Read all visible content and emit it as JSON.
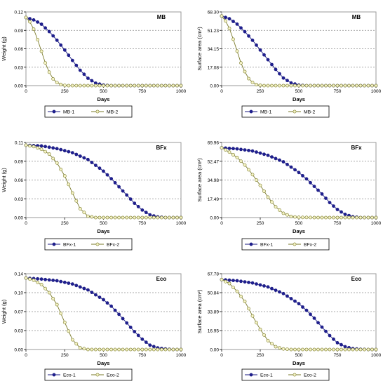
{
  "figure": {
    "colors": {
      "series1_fill": "#1f1f8f",
      "series1_line": "#1a1a80",
      "series2_fill": "#f5f3c6",
      "series2_line": "#7a7a2a",
      "grid": "#8c8c8c"
    }
  },
  "chart_data": [
    {
      "type": "line",
      "title": "MB",
      "xlabel": "Days",
      "ylabel": "Weight (g)",
      "xlim": [
        0,
        1000
      ],
      "ylim": [
        0,
        0.12
      ],
      "xticks": [
        "0",
        "250",
        "500",
        "750",
        "1000"
      ],
      "yticks": [
        "0.00",
        "0.03",
        "0.06",
        "0.09",
        "0.12"
      ],
      "legend_position": "bottom",
      "series": [
        {
          "name": "MB-1",
          "x": [
            0,
            50,
            100,
            150,
            200,
            250,
            300,
            350,
            400,
            450,
            500,
            550,
            600,
            700,
            800,
            900,
            1000
          ],
          "y": [
            0.111,
            0.107,
            0.1,
            0.088,
            0.074,
            0.058,
            0.041,
            0.025,
            0.012,
            0.004,
            0.001,
            0,
            0,
            0,
            0,
            0,
            0
          ]
        },
        {
          "name": "MB-2",
          "x": [
            0,
            25,
            50,
            75,
            100,
            125,
            150,
            175,
            200,
            225,
            250,
            275,
            300,
            350,
            400,
            500,
            1000
          ],
          "y": [
            0.111,
            0.104,
            0.092,
            0.075,
            0.056,
            0.037,
            0.022,
            0.011,
            0.005,
            0.002,
            0.0005,
            0,
            0,
            0,
            0,
            0,
            0
          ]
        }
      ]
    },
    {
      "type": "line",
      "title": "MB",
      "xlabel": "Days",
      "ylabel": "Surface area (cm²)",
      "xlim": [
        0,
        1000
      ],
      "ylim": [
        0,
        68.3
      ],
      "xticks": [
        "0",
        "250",
        "500",
        "750",
        "1000"
      ],
      "yticks": [
        "0.00",
        "17.08",
        "34.15",
        "51.23",
        "68.30"
      ],
      "legend_position": "bottom",
      "series": [
        {
          "name": "MB-1",
          "x": [
            0,
            50,
            100,
            150,
            200,
            250,
            300,
            350,
            400,
            450,
            500,
            550,
            600,
            700,
            800,
            900,
            1000
          ],
          "y": [
            64.5,
            62,
            57,
            50,
            42,
            33,
            24,
            15,
            7,
            2.5,
            0.5,
            0,
            0,
            0,
            0,
            0,
            0
          ]
        },
        {
          "name": "MB-2",
          "x": [
            0,
            25,
            50,
            75,
            100,
            125,
            150,
            175,
            200,
            225,
            250,
            275,
            300,
            350,
            400,
            500,
            1000
          ],
          "y": [
            64.5,
            60,
            53,
            43,
            32,
            21,
            13,
            6.5,
            3,
            1,
            0.3,
            0,
            0,
            0,
            0,
            0,
            0
          ]
        }
      ]
    },
    {
      "type": "line",
      "title": "BFx",
      "xlabel": "Days",
      "ylabel": "Weight (g)",
      "xlim": [
        0,
        1000
      ],
      "ylim": [
        0,
        0.11
      ],
      "xticks": [
        "0",
        "250",
        "500",
        "750",
        "1000"
      ],
      "yticks": [
        "0.00",
        "0.03",
        "0.06",
        "0.09",
        "0.11"
      ],
      "legend_position": "bottom",
      "series": [
        {
          "name": "BFx-1",
          "x": [
            0,
            100,
            200,
            300,
            400,
            500,
            550,
            600,
            650,
            700,
            750,
            800,
            850,
            900,
            950,
            1000
          ],
          "y": [
            0.106,
            0.105,
            0.101,
            0.095,
            0.085,
            0.068,
            0.057,
            0.045,
            0.033,
            0.021,
            0.011,
            0.004,
            0.001,
            0,
            0,
            0
          ]
        },
        {
          "name": "BFx-2",
          "x": [
            0,
            50,
            100,
            150,
            200,
            250,
            300,
            350,
            400,
            450,
            500,
            600,
            700,
            800,
            900,
            1000
          ],
          "y": [
            0.106,
            0.104,
            0.1,
            0.093,
            0.08,
            0.061,
            0.036,
            0.013,
            0.002,
            0,
            0,
            0,
            0,
            0,
            0,
            0
          ]
        }
      ]
    },
    {
      "type": "line",
      "title": "BFx",
      "xlabel": "Days",
      "ylabel": "Surface area (cm²)",
      "xlim": [
        0,
        1000
      ],
      "ylim": [
        0,
        69.96
      ],
      "xticks": [
        "0",
        "250",
        "500",
        "750",
        "1000"
      ],
      "yticks": [
        "0.00",
        "17.49",
        "34.98",
        "52.47",
        "69.96"
      ],
      "legend_position": "bottom",
      "series": [
        {
          "name": "BFx-1",
          "x": [
            0,
            100,
            200,
            300,
            400,
            500,
            550,
            600,
            650,
            700,
            750,
            800,
            850,
            900,
            950,
            1000
          ],
          "y": [
            65,
            64,
            62,
            58,
            52,
            42,
            36,
            29,
            22,
            14,
            7.5,
            3,
            0.8,
            0,
            0,
            0
          ]
        },
        {
          "name": "BFx-2",
          "x": [
            0,
            50,
            100,
            150,
            200,
            250,
            300,
            350,
            400,
            450,
            500,
            600,
            700,
            800,
            900,
            1000
          ],
          "y": [
            65,
            61,
            56,
            49,
            40,
            30,
            19,
            10,
            4,
            1,
            0.2,
            0,
            0,
            0,
            0,
            0
          ]
        }
      ]
    },
    {
      "type": "line",
      "title": "Eco",
      "xlabel": "Days",
      "ylabel": "Weight (g)",
      "xlim": [
        0,
        1000
      ],
      "ylim": [
        0,
        0.14
      ],
      "xticks": [
        "0",
        "250",
        "500",
        "750",
        "1000"
      ],
      "yticks": [
        "0.00",
        "0.03",
        "0.07",
        "0.10",
        "0.14"
      ],
      "legend_position": "bottom",
      "series": [
        {
          "name": "Eco-1",
          "x": [
            0,
            100,
            200,
            300,
            400,
            500,
            550,
            600,
            650,
            700,
            750,
            800,
            850,
            900,
            950,
            1000
          ],
          "y": [
            0.132,
            0.13,
            0.127,
            0.121,
            0.11,
            0.092,
            0.08,
            0.065,
            0.049,
            0.033,
            0.019,
            0.008,
            0.003,
            0.001,
            0,
            0
          ]
        },
        {
          "name": "Eco-2",
          "x": [
            0,
            50,
            100,
            150,
            200,
            250,
            300,
            350,
            400,
            450,
            500,
            600,
            700,
            800,
            900,
            1000
          ],
          "y": [
            0.132,
            0.128,
            0.12,
            0.105,
            0.083,
            0.05,
            0.018,
            0.003,
            0,
            0,
            0,
            0,
            0,
            0,
            0,
            0
          ]
        }
      ]
    },
    {
      "type": "line",
      "title": "Eco",
      "xlabel": "Days",
      "ylabel": "Surface area (cm²)",
      "xlim": [
        0,
        1000
      ],
      "ylim": [
        0,
        67.78
      ],
      "xticks": [
        "0",
        "250",
        "500",
        "750",
        "1000"
      ],
      "yticks": [
        "0.00",
        "16.95",
        "33.89",
        "50.84",
        "67.78"
      ],
      "legend_position": "bottom",
      "series": [
        {
          "name": "Eco-1",
          "x": [
            0,
            100,
            200,
            300,
            400,
            500,
            550,
            600,
            650,
            700,
            750,
            800,
            850,
            900,
            950,
            1000
          ],
          "y": [
            62.5,
            61.5,
            59.5,
            56,
            50,
            41,
            35,
            28,
            20,
            12.5,
            6,
            2.5,
            0.8,
            0.2,
            0,
            0
          ]
        },
        {
          "name": "Eco-2",
          "x": [
            0,
            50,
            100,
            150,
            200,
            250,
            300,
            350,
            400,
            450,
            500,
            600,
            700,
            800,
            900,
            1000
          ],
          "y": [
            62.5,
            59,
            52,
            43,
            30,
            18,
            8,
            2.5,
            0.5,
            0,
            0,
            0,
            0,
            0,
            0,
            0
          ]
        }
      ]
    }
  ]
}
